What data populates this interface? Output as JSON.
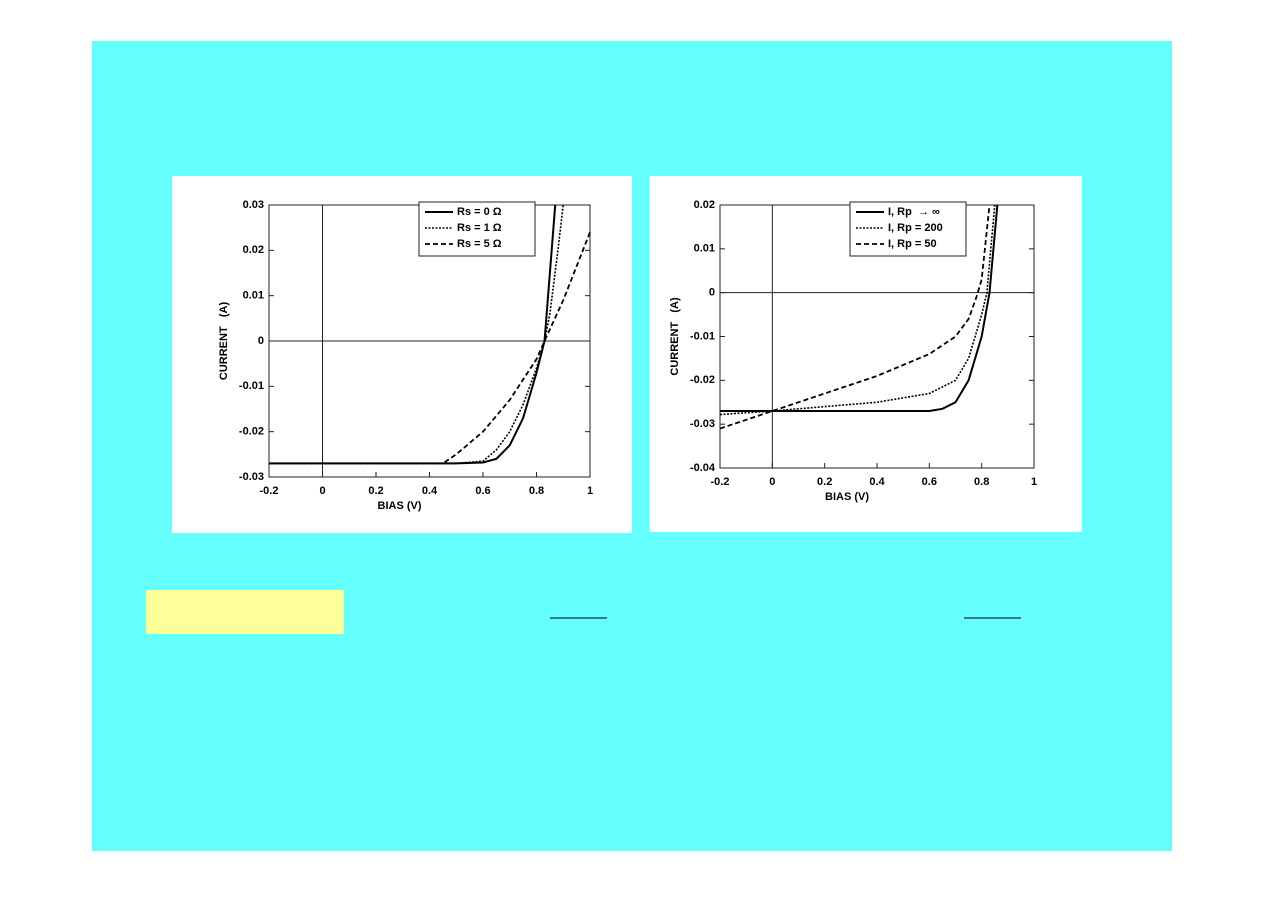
{
  "chart_data": [
    {
      "type": "line",
      "xlabel": "BIAS (V)",
      "ylabel": "CURRENT   (A)",
      "xlim": [
        -0.2,
        1
      ],
      "ylim": [
        -0.03,
        0.03
      ],
      "xticks": [
        -0.2,
        0,
        0.2,
        0.4,
        0.6,
        0.8,
        1
      ],
      "yticks": [
        0.03,
        0.02,
        0.01,
        0,
        -0.01,
        -0.02,
        -0.03
      ],
      "legend": "top-right",
      "series": [
        {
          "name": "Rs = 0 Ω",
          "color": "#000000",
          "dash": "solid",
          "x": [
            -0.2,
            0,
            0.2,
            0.4,
            0.5,
            0.6,
            0.65,
            0.7,
            0.75,
            0.8,
            0.83,
            0.85,
            0.87
          ],
          "values": [
            -0.027,
            -0.027,
            -0.027,
            -0.027,
            -0.027,
            -0.0268,
            -0.026,
            -0.023,
            -0.017,
            -0.007,
            0,
            0.015,
            0.03
          ]
        },
        {
          "name": "Rs = 1 Ω",
          "color": "#000000",
          "dash": "dotted",
          "x": [
            -0.2,
            0,
            0.2,
            0.4,
            0.5,
            0.6,
            0.65,
            0.7,
            0.75,
            0.8,
            0.83,
            0.85,
            0.88,
            0.9
          ],
          "values": [
            -0.027,
            -0.027,
            -0.027,
            -0.027,
            -0.027,
            -0.0265,
            -0.024,
            -0.02,
            -0.014,
            -0.006,
            0,
            0.006,
            0.02,
            0.03
          ]
        },
        {
          "name": "Rs = 5 Ω",
          "color": "#000000",
          "dash": "dashed",
          "x": [
            -0.2,
            0,
            0.2,
            0.4,
            0.45,
            0.5,
            0.6,
            0.7,
            0.8,
            0.83,
            0.9,
            1
          ],
          "values": [
            -0.027,
            -0.027,
            -0.027,
            -0.027,
            -0.027,
            -0.025,
            -0.02,
            -0.013,
            -0.004,
            0,
            0.009,
            0.024
          ]
        }
      ]
    },
    {
      "type": "line",
      "xlabel": "BIAS (V)",
      "ylabel": "CURRENT   (A)",
      "xlim": [
        -0.2,
        1
      ],
      "ylim": [
        -0.04,
        0.02
      ],
      "xticks": [
        -0.2,
        0,
        0.2,
        0.4,
        0.6,
        0.8,
        1
      ],
      "yticks": [
        0.02,
        0.01,
        0,
        -0.01,
        -0.02,
        -0.03,
        -0.04
      ],
      "legend": "top-left",
      "series": [
        {
          "name": "I, Rp  → ∞",
          "color": "#000000",
          "dash": "solid",
          "x": [
            -0.2,
            0,
            0.2,
            0.4,
            0.6,
            0.65,
            0.7,
            0.75,
            0.8,
            0.83,
            0.86
          ],
          "values": [
            -0.027,
            -0.027,
            -0.027,
            -0.027,
            -0.027,
            -0.0265,
            -0.025,
            -0.02,
            -0.01,
            0,
            0.02
          ]
        },
        {
          "name": "I, Rp = 200",
          "color": "#000000",
          "dash": "dotted",
          "x": [
            -0.2,
            0,
            0.2,
            0.4,
            0.6,
            0.7,
            0.75,
            0.8,
            0.82,
            0.85
          ],
          "values": [
            -0.0278,
            -0.027,
            -0.026,
            -0.025,
            -0.023,
            -0.02,
            -0.015,
            -0.005,
            0,
            0.02
          ]
        },
        {
          "name": "I, Rp = 50",
          "color": "#000000",
          "dash": "dashed",
          "x": [
            -0.2,
            0,
            0.2,
            0.4,
            0.6,
            0.7,
            0.75,
            0.78,
            0.8,
            0.83
          ],
          "values": [
            -0.031,
            -0.027,
            -0.023,
            -0.019,
            -0.014,
            -0.01,
            -0.006,
            -0.001,
            0.003,
            0.02
          ]
        }
      ]
    }
  ]
}
